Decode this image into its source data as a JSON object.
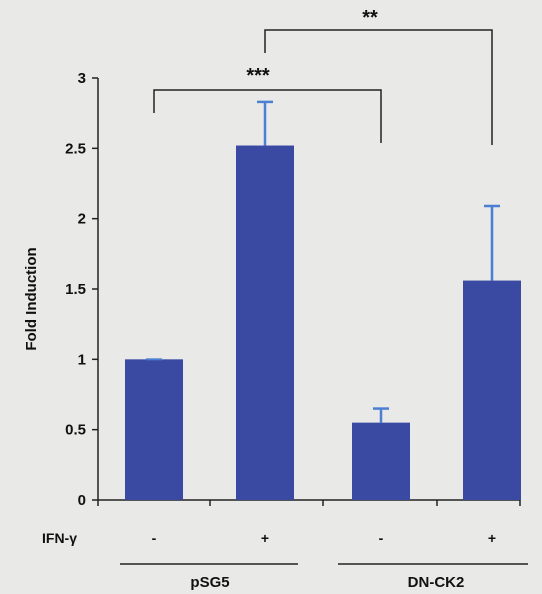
{
  "colors": {
    "bar": "#3a4aa3",
    "error": "#4a7fd4",
    "axis": "#222222",
    "background": "#e9e9e7"
  },
  "chart_data": {
    "type": "bar",
    "ylabel": "Fold Induction",
    "ylim": [
      0,
      3
    ],
    "yticks": [
      "0",
      "0.5",
      "1",
      "1.5",
      "2",
      "2.5",
      "3"
    ],
    "values": [
      1.0,
      2.52,
      0.55,
      1.56
    ],
    "errors": [
      0.0,
      0.31,
      0.1,
      0.53
    ],
    "treatment_row": {
      "label": "IFN-γ",
      "values": [
        "-",
        "+",
        "-",
        "+"
      ]
    },
    "groups": [
      "pSG5",
      "DN-CK2"
    ],
    "grid": false,
    "significance": [
      {
        "label": "***",
        "from": 0,
        "to": 2
      },
      {
        "label": "**",
        "from": 1,
        "to": 3
      }
    ]
  }
}
